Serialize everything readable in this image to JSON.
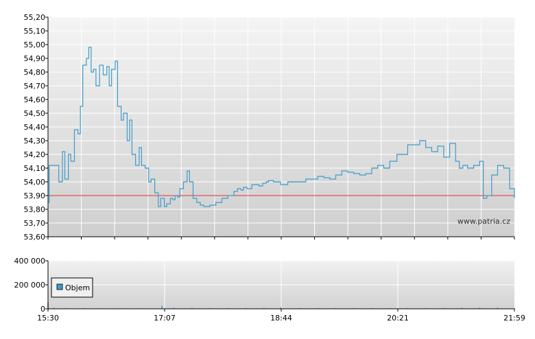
{
  "chart_data": [
    {
      "type": "line",
      "xlabel": "",
      "ylabel": "",
      "ylim": [
        53.6,
        55.2
      ],
      "yticks": [
        "53,60",
        "53,70",
        "53,80",
        "53,90",
        "54,00",
        "54,10",
        "54,20",
        "54,30",
        "54,40",
        "54,50",
        "54,60",
        "54,70",
        "54,80",
        "54,90",
        "55,00",
        "55,10",
        "55,20"
      ],
      "grid": true,
      "reference_line": {
        "value": 53.9,
        "color": "#e03030"
      },
      "line_color": "#3d9cc9",
      "watermark": "www.patria.cz",
      "series": [
        {
          "x": [
            "15:30",
            "15:31",
            "15:33",
            "15:39",
            "15:42",
            "15:44",
            "15:47",
            "15:49",
            "15:52",
            "15:55",
            "15:57",
            "15:59",
            "16:02",
            "16:04",
            "16:06",
            "16:08",
            "16:10",
            "16:13",
            "16:16",
            "16:19",
            "16:21",
            "16:23",
            "16:26",
            "16:28",
            "16:31",
            "16:33",
            "16:36",
            "16:38",
            "16:40",
            "16:43",
            "16:46",
            "16:48",
            "16:51",
            "16:54",
            "16:56",
            "16:59",
            "17:02",
            "17:04",
            "17:07",
            "17:09",
            "17:12",
            "17:14",
            "17:16",
            "17:18",
            "17:20",
            "17:23",
            "17:26",
            "17:28",
            "17:31",
            "17:34",
            "17:37",
            "17:40",
            "17:45",
            "17:50",
            "17:55",
            "18:00",
            "18:05",
            "18:08",
            "18:11",
            "18:13",
            "18:16",
            "18:20",
            "18:23",
            "18:26",
            "18:29",
            "18:32",
            "18:34",
            "18:38",
            "18:44",
            "18:50",
            "18:55",
            "19:00",
            "19:05",
            "19:10",
            "19:15",
            "19:20",
            "19:25",
            "19:30",
            "19:35",
            "19:40",
            "19:45",
            "19:50",
            "19:55",
            "20:00",
            "20:05",
            "20:10",
            "20:15",
            "20:21",
            "20:30",
            "20:40",
            "20:45",
            "20:50",
            "20:55",
            "21:00",
            "21:05",
            "21:10",
            "21:13",
            "21:16",
            "21:20",
            "21:25",
            "21:30",
            "21:33",
            "21:36",
            "21:40",
            "21:45",
            "21:50",
            "21:55",
            "21:59"
          ],
          "y": [
            53.85,
            54.12,
            54.12,
            54.0,
            54.22,
            54.02,
            54.2,
            54.15,
            54.38,
            54.35,
            54.55,
            54.85,
            54.9,
            54.98,
            54.8,
            54.82,
            54.7,
            54.85,
            54.78,
            54.84,
            54.7,
            54.82,
            54.88,
            54.55,
            54.45,
            54.5,
            54.3,
            54.45,
            54.2,
            54.12,
            54.25,
            54.12,
            54.1,
            54.0,
            54.02,
            53.92,
            53.82,
            53.88,
            53.82,
            53.84,
            53.88,
            53.87,
            53.9,
            53.89,
            53.95,
            54.0,
            54.08,
            54.0,
            53.88,
            53.85,
            53.83,
            53.82,
            53.83,
            53.85,
            53.88,
            53.9,
            53.93,
            53.95,
            53.94,
            53.96,
            53.95,
            53.98,
            53.98,
            53.97,
            53.99,
            54.0,
            54.01,
            54.0,
            53.98,
            54.0,
            54.0,
            54.0,
            54.02,
            54.02,
            54.04,
            54.03,
            54.02,
            54.05,
            54.08,
            54.07,
            54.06,
            54.05,
            54.06,
            54.1,
            54.12,
            54.1,
            54.15,
            54.2,
            54.27,
            54.3,
            54.25,
            54.22,
            54.26,
            54.18,
            54.28,
            54.15,
            54.1,
            54.12,
            54.1,
            54.12,
            54.15,
            53.88,
            53.9,
            54.05,
            54.12,
            54.1,
            53.95,
            53.88
          ]
        }
      ],
      "x_axis_ticks": [
        "15:30",
        "17:07",
        "18:44",
        "20:21",
        "21:59"
      ]
    },
    {
      "type": "bar",
      "ylim": [
        0,
        400000
      ],
      "yticks": [
        "0",
        "200 000",
        "400 000"
      ],
      "xticks": [
        "15:30",
        "17:07",
        "18:44",
        "20:21",
        "21:59"
      ],
      "grid": true,
      "legend": {
        "placement": "top-left"
      },
      "series": [
        {
          "name": "Objem",
          "color": "#3d9cc9",
          "x": [
            "15:30",
            "15:35",
            "15:45",
            "16:00",
            "16:15",
            "16:30",
            "16:45",
            "17:05",
            "17:15",
            "17:30",
            "17:45",
            "18:00",
            "18:15",
            "18:30",
            "18:44",
            "19:00",
            "19:15",
            "19:30",
            "19:45",
            "20:00",
            "20:15",
            "20:30",
            "20:45",
            "21:00",
            "21:15",
            "21:30",
            "21:45",
            "21:59"
          ],
          "values": [
            52000,
            9000,
            5000,
            6000,
            4000,
            5000,
            4000,
            25000,
            8000,
            7000,
            6000,
            5000,
            6000,
            7000,
            12000,
            6000,
            5000,
            5000,
            6000,
            5000,
            5000,
            6000,
            5000,
            7000,
            8000,
            9000,
            10000,
            6000
          ]
        }
      ]
    }
  ]
}
